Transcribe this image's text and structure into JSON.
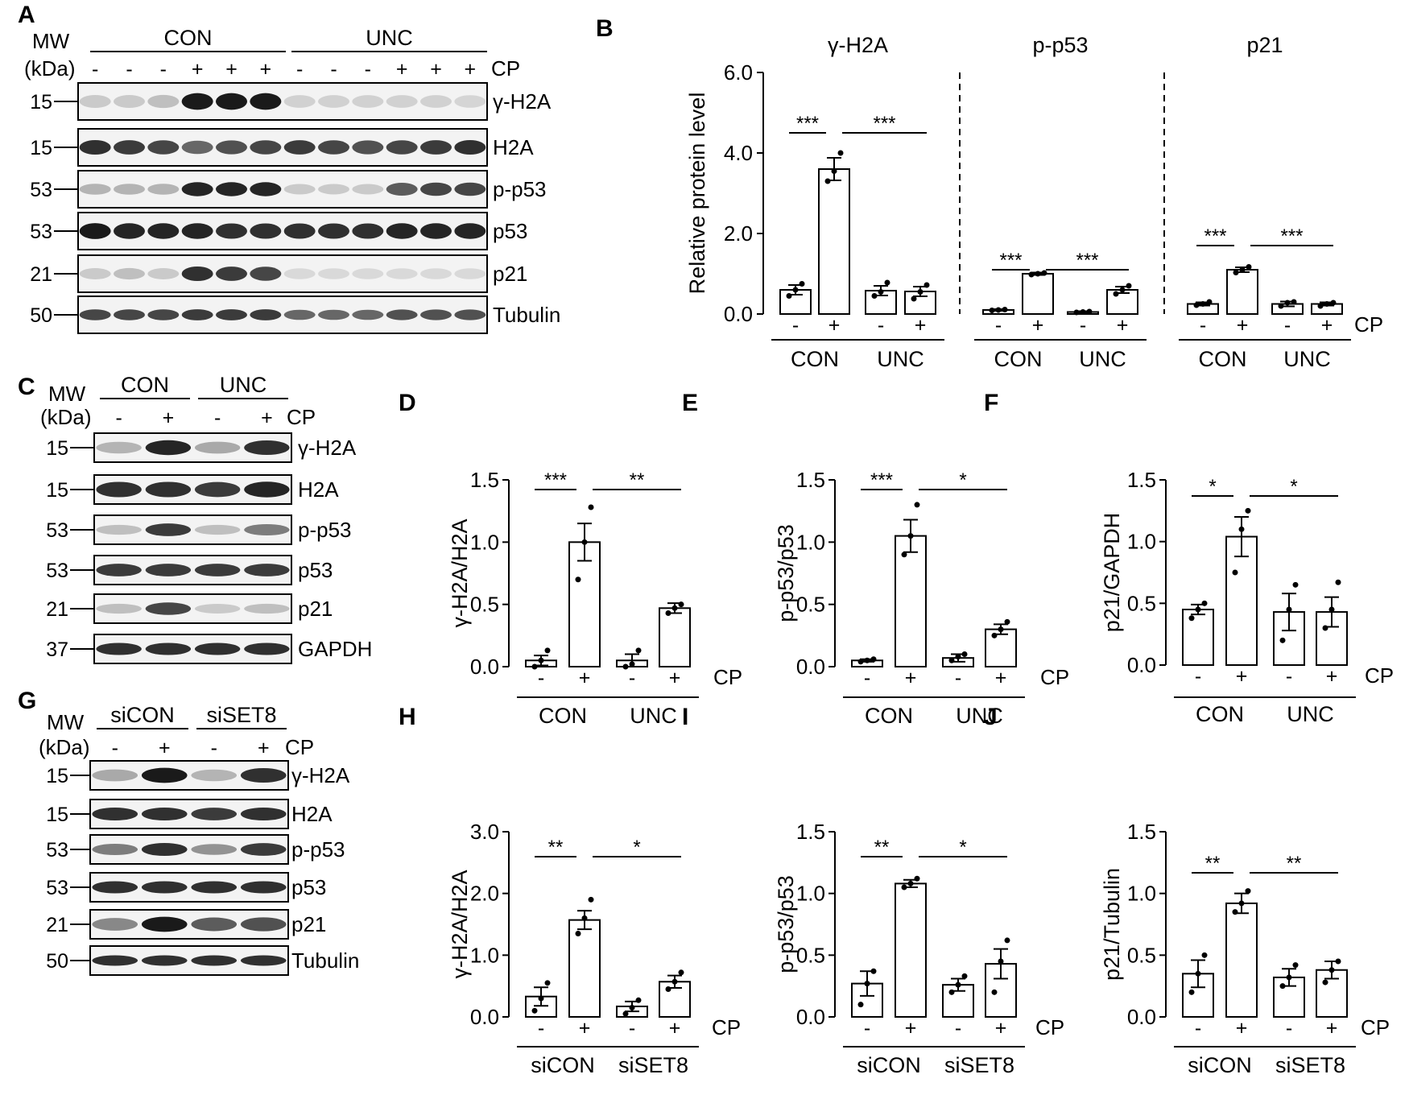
{
  "labels": {
    "mw": "MW",
    "kda": "(kDa)",
    "cp": "CP",
    "minus": "-",
    "plus": "+"
  },
  "blots": [
    {
      "panel": "A",
      "groups": [
        "CON",
        "UNC"
      ],
      "lanes_per_group": 6,
      "cp": [
        "-",
        "-",
        "-",
        "+",
        "+",
        "+",
        "-",
        "-",
        "-",
        "+",
        "+",
        "+"
      ],
      "rows": [
        {
          "mw": "15",
          "label": "γ-H2A",
          "lanes": [
            0.15,
            0.15,
            0.2,
            0.95,
            0.95,
            0.95,
            0.12,
            0.12,
            0.12,
            0.12,
            0.12,
            0.1
          ]
        },
        {
          "mw": "15",
          "label": "H2A",
          "lanes": [
            0.85,
            0.8,
            0.75,
            0.6,
            0.7,
            0.75,
            0.8,
            0.75,
            0.7,
            0.75,
            0.8,
            0.85
          ]
        },
        {
          "mw": "53",
          "label": "p-p53",
          "lanes": [
            0.25,
            0.25,
            0.25,
            0.9,
            0.9,
            0.9,
            0.15,
            0.15,
            0.15,
            0.65,
            0.75,
            0.75
          ]
        },
        {
          "mw": "53",
          "label": "p53",
          "lanes": [
            0.95,
            0.9,
            0.9,
            0.9,
            0.85,
            0.85,
            0.85,
            0.85,
            0.85,
            0.9,
            0.9,
            0.9
          ]
        },
        {
          "mw": "21",
          "label": "p21",
          "lanes": [
            0.15,
            0.2,
            0.15,
            0.85,
            0.8,
            0.75,
            0.08,
            0.08,
            0.08,
            0.08,
            0.08,
            0.08
          ]
        },
        {
          "mw": "50",
          "label": "Tubulin",
          "lanes": [
            0.75,
            0.75,
            0.75,
            0.8,
            0.8,
            0.8,
            0.6,
            0.6,
            0.6,
            0.7,
            0.7,
            0.7
          ]
        }
      ]
    },
    {
      "panel": "C",
      "groups": [
        "CON",
        "UNC"
      ],
      "lanes_per_group": 2,
      "cp": [
        "-",
        "+",
        "-",
        "+"
      ],
      "rows": [
        {
          "mw": "15",
          "label": "γ-H2A",
          "lanes": [
            0.25,
            0.9,
            0.3,
            0.85
          ]
        },
        {
          "mw": "15",
          "label": "H2A",
          "lanes": [
            0.85,
            0.85,
            0.8,
            0.9
          ]
        },
        {
          "mw": "53",
          "label": "p-p53",
          "lanes": [
            0.2,
            0.8,
            0.2,
            0.5
          ]
        },
        {
          "mw": "53",
          "label": "p53",
          "lanes": [
            0.8,
            0.8,
            0.8,
            0.8
          ]
        },
        {
          "mw": "21",
          "label": "p21",
          "lanes": [
            0.2,
            0.75,
            0.15,
            0.2
          ]
        },
        {
          "mw": "37",
          "label": "GAPDH",
          "lanes": [
            0.85,
            0.85,
            0.85,
            0.85
          ]
        }
      ]
    },
    {
      "panel": "G",
      "groups": [
        "siCON",
        "siSET8"
      ],
      "lanes_per_group": 2,
      "cp": [
        "-",
        "+",
        "-",
        "+"
      ],
      "rows": [
        {
          "mw": "15",
          "label": "γ-H2A",
          "lanes": [
            0.3,
            0.95,
            0.25,
            0.85
          ]
        },
        {
          "mw": "15",
          "label": "H2A",
          "lanes": [
            0.85,
            0.85,
            0.8,
            0.85
          ]
        },
        {
          "mw": "53",
          "label": "p-p53",
          "lanes": [
            0.5,
            0.85,
            0.4,
            0.8
          ]
        },
        {
          "mw": "53",
          "label": "p53",
          "lanes": [
            0.85,
            0.85,
            0.85,
            0.85
          ]
        },
        {
          "mw": "21",
          "label": "p21",
          "lanes": [
            0.45,
            0.95,
            0.65,
            0.7
          ]
        },
        {
          "mw": "50",
          "label": "Tubulin",
          "lanes": [
            0.85,
            0.85,
            0.85,
            0.85
          ]
        }
      ]
    }
  ],
  "chart_data": [
    {
      "panel": "B",
      "type": "bar",
      "ylabel": "Relative protein level",
      "ylim": [
        0,
        6
      ],
      "yticks": [
        "0.0",
        "2.0",
        "4.0",
        "6.0"
      ],
      "groups": [
        "CON",
        "UNC"
      ],
      "subplots": [
        {
          "title": "γ-H2A",
          "values": [
            0.6,
            3.6,
            0.58,
            0.56
          ],
          "errors": [
            0.12,
            0.28,
            0.12,
            0.12
          ],
          "points": [
            [
              0.45,
              0.6,
              0.75
            ],
            [
              3.3,
              3.55,
              4.0
            ],
            [
              0.45,
              0.55,
              0.78
            ],
            [
              0.38,
              0.55,
              0.72
            ]
          ],
          "sig": [
            {
              "from": 0,
              "to": 1,
              "label": "***"
            },
            {
              "from": 1,
              "to": 3,
              "label": "***"
            }
          ]
        },
        {
          "title": "p-p53",
          "values": [
            0.1,
            1.0,
            0.05,
            0.6
          ],
          "errors": [
            0.02,
            0.03,
            0.02,
            0.08
          ],
          "points": [
            [
              0.09,
              0.1,
              0.11
            ],
            [
              0.98,
              1.0,
              1.02
            ],
            [
              0.04,
              0.05,
              0.06
            ],
            [
              0.5,
              0.6,
              0.7
            ]
          ],
          "sig": [
            {
              "from": 0,
              "to": 1,
              "label": "***"
            },
            {
              "from": 1,
              "to": 3,
              "label": "***"
            }
          ]
        },
        {
          "title": "p21",
          "values": [
            0.25,
            1.1,
            0.25,
            0.25
          ],
          "errors": [
            0.04,
            0.06,
            0.06,
            0.04
          ],
          "points": [
            [
              0.22,
              0.25,
              0.3
            ],
            [
              1.03,
              1.1,
              1.17
            ],
            [
              0.2,
              0.28,
              0.3
            ],
            [
              0.2,
              0.25,
              0.28
            ]
          ],
          "sig": [
            {
              "from": 0,
              "to": 1,
              "label": "***"
            },
            {
              "from": 1,
              "to": 3,
              "label": "***"
            }
          ]
        }
      ]
    },
    {
      "panel": "D",
      "type": "bar",
      "ylabel": "γ-H2A/H2A",
      "ylim": [
        0,
        1.5
      ],
      "yticks": [
        "0.0",
        "0.5",
        "1.0",
        "1.5"
      ],
      "groups": [
        "CON",
        "UNC"
      ],
      "values": [
        0.05,
        1.0,
        0.05,
        0.47
      ],
      "errors": [
        0.04,
        0.15,
        0.05,
        0.04
      ],
      "points": [
        [
          0.0,
          0.05,
          0.13
        ],
        [
          0.7,
          1.0,
          1.28
        ],
        [
          0.0,
          0.02,
          0.13
        ],
        [
          0.43,
          0.47,
          0.5
        ]
      ],
      "sig": [
        {
          "from": 0,
          "to": 1,
          "label": "***"
        },
        {
          "from": 1,
          "to": 3,
          "label": "**"
        }
      ]
    },
    {
      "panel": "E",
      "type": "bar",
      "ylabel": "p-p53/p53",
      "ylim": [
        0,
        1.5
      ],
      "yticks": [
        "0.0",
        "0.5",
        "1.0",
        "1.5"
      ],
      "groups": [
        "CON",
        "UNC"
      ],
      "values": [
        0.05,
        1.05,
        0.07,
        0.3
      ],
      "errors": [
        0.01,
        0.13,
        0.03,
        0.04
      ],
      "points": [
        [
          0.04,
          0.05,
          0.06
        ],
        [
          0.9,
          1.05,
          1.3
        ],
        [
          0.05,
          0.08,
          0.1
        ],
        [
          0.25,
          0.3,
          0.36
        ]
      ],
      "sig": [
        {
          "from": 0,
          "to": 1,
          "label": "***"
        },
        {
          "from": 1,
          "to": 3,
          "label": "*"
        }
      ]
    },
    {
      "panel": "F",
      "type": "bar",
      "ylabel": "p21/GAPDH",
      "ylim": [
        0,
        1.5
      ],
      "yticks": [
        "0.0",
        "0.5",
        "1.0",
        "1.5"
      ],
      "groups": [
        "CON",
        "UNC"
      ],
      "values": [
        0.45,
        1.04,
        0.43,
        0.43
      ],
      "errors": [
        0.04,
        0.16,
        0.15,
        0.12
      ],
      "points": [
        [
          0.38,
          0.45,
          0.5
        ],
        [
          0.75,
          1.1,
          1.25
        ],
        [
          0.2,
          0.45,
          0.65
        ],
        [
          0.3,
          0.45,
          0.67
        ]
      ],
      "sig": [
        {
          "from": 0,
          "to": 1,
          "label": "*"
        },
        {
          "from": 1,
          "to": 3,
          "label": "*"
        }
      ]
    },
    {
      "panel": "H",
      "type": "bar",
      "ylabel": "γ-H2A/H2A",
      "ylim": [
        0,
        3.0
      ],
      "yticks": [
        "0.0",
        "1.0",
        "2.0",
        "3.0"
      ],
      "groups": [
        "siCON",
        "siSET8"
      ],
      "values": [
        0.33,
        1.57,
        0.17,
        0.57
      ],
      "errors": [
        0.15,
        0.15,
        0.08,
        0.1
      ],
      "points": [
        [
          0.1,
          0.3,
          0.55
        ],
        [
          1.35,
          1.6,
          1.9
        ],
        [
          0.05,
          0.15,
          0.27
        ],
        [
          0.45,
          0.57,
          0.72
        ]
      ],
      "sig": [
        {
          "from": 0,
          "to": 1,
          "label": "**"
        },
        {
          "from": 1,
          "to": 3,
          "label": "*"
        }
      ]
    },
    {
      "panel": "I",
      "type": "bar",
      "ylabel": "p-p53/p53",
      "ylim": [
        0,
        1.5
      ],
      "yticks": [
        "0.0",
        "0.5",
        "1.0",
        "1.5"
      ],
      "groups": [
        "siCON",
        "siSET8"
      ],
      "values": [
        0.27,
        1.08,
        0.26,
        0.43
      ],
      "errors": [
        0.1,
        0.03,
        0.05,
        0.12
      ],
      "points": [
        [
          0.1,
          0.27,
          0.37
        ],
        [
          1.05,
          1.08,
          1.12
        ],
        [
          0.2,
          0.26,
          0.33
        ],
        [
          0.2,
          0.45,
          0.62
        ]
      ],
      "sig": [
        {
          "from": 0,
          "to": 1,
          "label": "**"
        },
        {
          "from": 1,
          "to": 3,
          "label": "*"
        }
      ]
    },
    {
      "panel": "J",
      "type": "bar",
      "ylabel": "p21/Tubulin",
      "ylim": [
        0,
        1.5
      ],
      "yticks": [
        "0.0",
        "0.5",
        "1.0",
        "1.5"
      ],
      "groups": [
        "siCON",
        "siSET8"
      ],
      "values": [
        0.35,
        0.92,
        0.32,
        0.38
      ],
      "errors": [
        0.11,
        0.08,
        0.07,
        0.07
      ],
      "points": [
        [
          0.2,
          0.35,
          0.5
        ],
        [
          0.85,
          0.92,
          1.02
        ],
        [
          0.25,
          0.32,
          0.42
        ],
        [
          0.28,
          0.38,
          0.45
        ]
      ],
      "sig": [
        {
          "from": 0,
          "to": 1,
          "label": "**"
        },
        {
          "from": 1,
          "to": 3,
          "label": "**"
        }
      ]
    }
  ]
}
